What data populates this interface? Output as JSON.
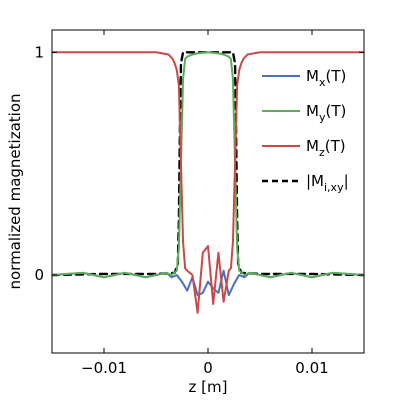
{
  "chart_data": {
    "type": "line",
    "title": "",
    "xlabel": "z [m]",
    "ylabel": "normalized magnetization",
    "xlim": [
      -0.015,
      0.015
    ],
    "ylim": [
      -0.35,
      1.1
    ],
    "xticks": [
      -0.01,
      0,
      0.01
    ],
    "xtick_labels": [
      "−0.01",
      "0",
      "0.01"
    ],
    "yticks": [
      0,
      1
    ],
    "ytick_labels": [
      "0",
      "1"
    ],
    "grid": false,
    "legend_position": "right",
    "series": [
      {
        "name": "Mx(T)",
        "label_main": "M",
        "label_sub": "x",
        "label_tail": "(T)",
        "color": "#4a72b8",
        "dash": "solid",
        "x": [
          -0.015,
          -0.012,
          -0.01,
          -0.008,
          -0.006,
          -0.004,
          -0.0035,
          -0.003,
          -0.0025,
          -0.002,
          -0.0015,
          -0.001,
          -0.0005,
          0,
          0.0005,
          0.001,
          0.0015,
          0.002,
          0.0025,
          0.003,
          0.0035,
          0.004,
          0.006,
          0.008,
          0.01,
          0.012,
          0.015
        ],
        "y": [
          0.0,
          0.01,
          -0.01,
          0.01,
          -0.01,
          0.01,
          -0.01,
          0.0,
          -0.03,
          -0.07,
          -0.01,
          -0.09,
          -0.08,
          -0.03,
          -0.06,
          -0.08,
          0.02,
          -0.09,
          -0.04,
          0.0,
          -0.01,
          0.01,
          -0.01,
          0.01,
          -0.01,
          0.01,
          0.0
        ]
      },
      {
        "name": "My(T)",
        "label_main": "M",
        "label_sub": "y",
        "label_tail": "(T)",
        "color": "#5aad5a",
        "dash": "solid",
        "x": [
          -0.015,
          -0.012,
          -0.01,
          -0.008,
          -0.006,
          -0.004,
          -0.0035,
          -0.003,
          -0.0028,
          -0.0026,
          -0.0024,
          -0.0022,
          -0.002,
          -0.0015,
          -0.001,
          0,
          0.001,
          0.0015,
          0.002,
          0.0022,
          0.0024,
          0.0026,
          0.0028,
          0.003,
          0.0035,
          0.004,
          0.006,
          0.008,
          0.01,
          0.012,
          0.015
        ],
        "y": [
          0.0,
          0.01,
          -0.01,
          0.01,
          -0.01,
          0.01,
          0.0,
          0.02,
          0.12,
          0.5,
          0.88,
          0.97,
          0.98,
          0.99,
          0.995,
          1.0,
          0.995,
          0.99,
          0.98,
          0.97,
          0.88,
          0.5,
          0.12,
          0.02,
          0.0,
          0.01,
          -0.01,
          0.01,
          -0.01,
          0.01,
          0.0
        ]
      },
      {
        "name": "Mz(T)",
        "label_main": "M",
        "label_sub": "z",
        "label_tail": "(T)",
        "color": "#cc4848",
        "dash": "solid",
        "x": [
          -0.015,
          -0.005,
          -0.0038,
          -0.0034,
          -0.0032,
          -0.003,
          -0.0028,
          -0.0026,
          -0.0024,
          -0.0022,
          -0.002,
          -0.0015,
          -0.001,
          -0.0005,
          0,
          0.0005,
          0.001,
          0.0015,
          0.002,
          0.0022,
          0.0024,
          0.0026,
          0.0028,
          0.003,
          0.0032,
          0.0034,
          0.0038,
          0.005,
          0.015
        ],
        "y": [
          1.0,
          1.0,
          0.99,
          0.97,
          0.95,
          0.92,
          0.85,
          0.5,
          0.15,
          0.03,
          0.02,
          0.0,
          -0.17,
          0.1,
          0.13,
          -0.13,
          0.1,
          -0.12,
          0.02,
          0.03,
          0.15,
          0.5,
          0.85,
          0.92,
          0.95,
          0.97,
          0.99,
          1.0,
          1.0
        ]
      },
      {
        "name": "|Mi,xy|",
        "label_main": "|M",
        "label_sub": "i,xy",
        "label_tail": "|",
        "color": "#000000",
        "dash": "dashed",
        "x": [
          -0.015,
          -0.01,
          -0.005,
          -0.0032,
          -0.0029,
          -0.0028,
          -0.0027,
          -0.0026,
          -0.0024,
          0,
          0.0024,
          0.0026,
          0.0027,
          0.0028,
          0.0029,
          0.0032,
          0.005,
          0.01,
          0.015
        ],
        "y": [
          0.0,
          0.005,
          0.005,
          0.01,
          0.05,
          0.25,
          0.65,
          0.95,
          1.0,
          1.0,
          1.0,
          0.95,
          0.65,
          0.25,
          0.05,
          0.01,
          0.005,
          0.005,
          0.0
        ]
      }
    ]
  }
}
